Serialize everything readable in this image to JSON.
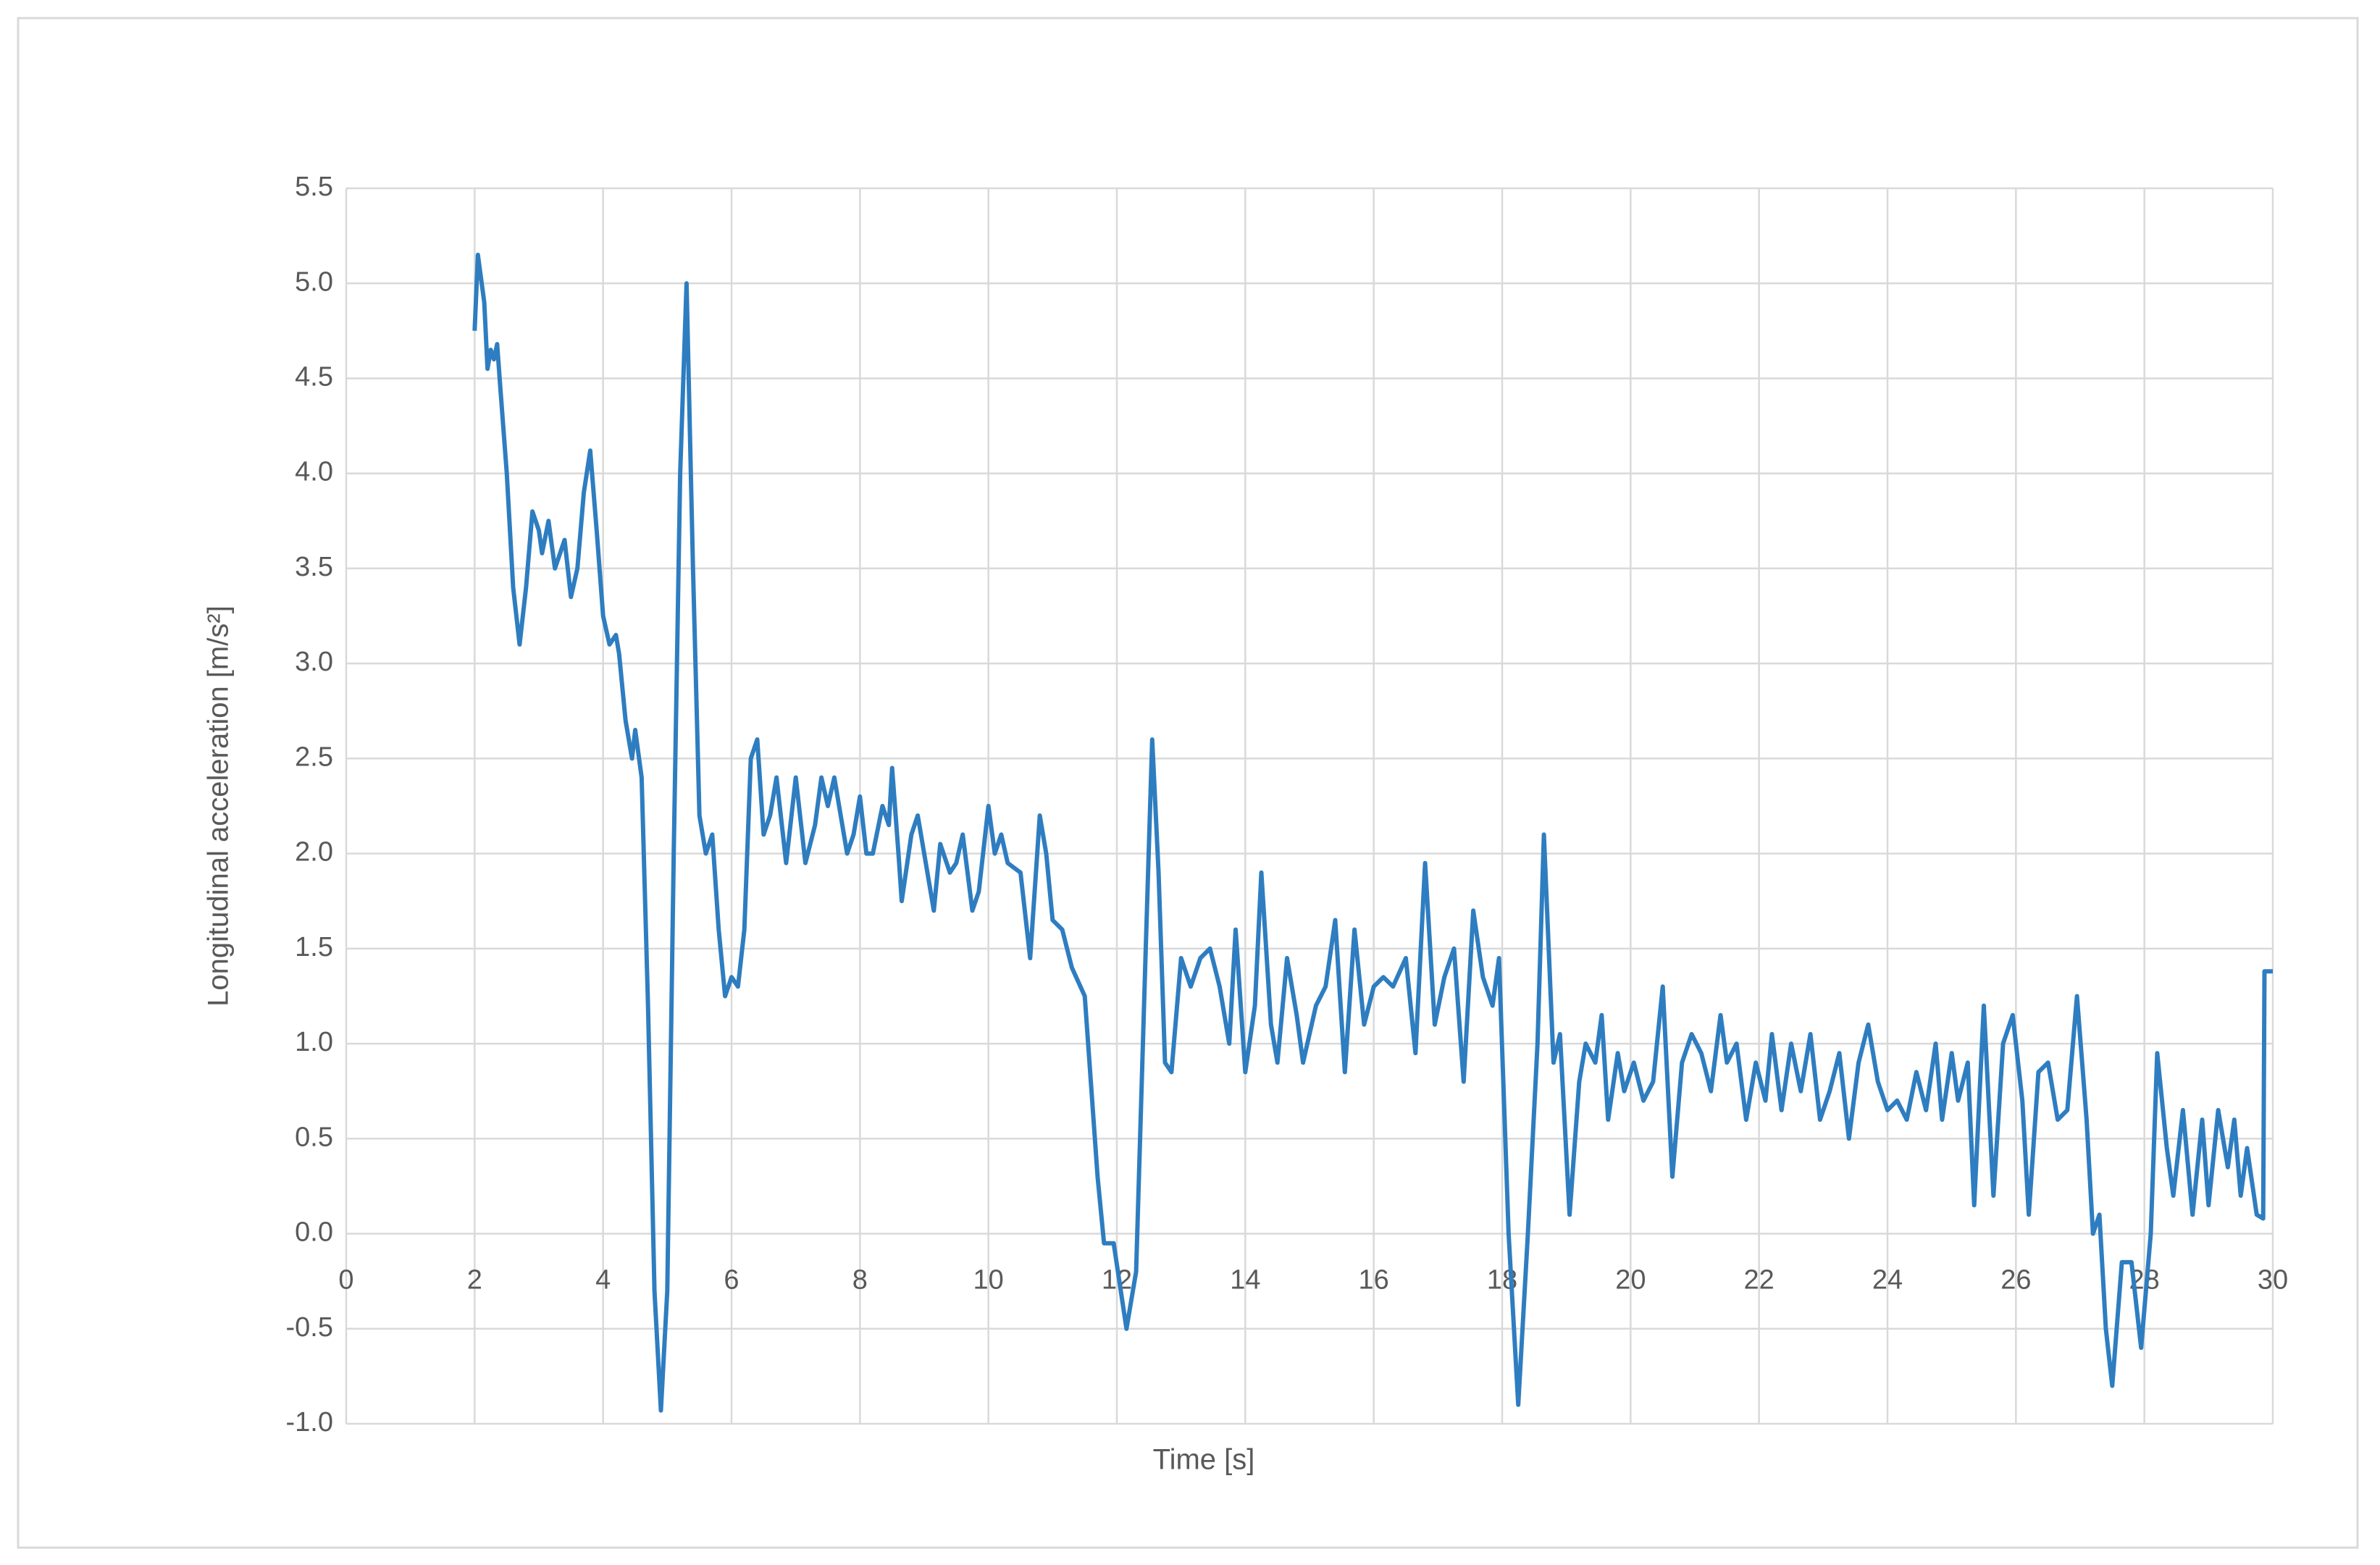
{
  "chart_data": {
    "type": "line",
    "xlabel": "Time [s]",
    "ylabel": "Longitudinal acceleration [m/s²]",
    "color": "#2e7dc0",
    "grid": true,
    "xlim": [
      0,
      30
    ],
    "xticks": [
      0,
      2,
      4,
      6,
      8,
      10,
      12,
      14,
      16,
      18,
      20,
      22,
      24,
      26,
      28,
      30
    ],
    "ylim": [
      -1,
      5.5
    ],
    "yticks": [
      {
        "value": -1,
        "label": "-1.0"
      },
      -0.5,
      {
        "value": 0,
        "label": "0.0"
      },
      0.5,
      {
        "value": 1,
        "label": "1.0"
      },
      1.5,
      {
        "value": 2,
        "label": "2.0"
      },
      2.5,
      {
        "value": 3,
        "label": "3.0"
      },
      3.5,
      {
        "value": 4,
        "label": "4.0"
      },
      4.5,
      {
        "value": 5,
        "label": "5.0"
      },
      5.5
    ],
    "x": [
      2.0,
      2.05,
      2.15,
      2.2,
      2.25,
      2.3,
      2.35,
      2.4,
      2.5,
      2.6,
      2.7,
      2.8,
      2.9,
      3.0,
      3.05,
      3.15,
      3.25,
      3.4,
      3.5,
      3.6,
      3.7,
      3.8,
      3.9,
      4.0,
      4.1,
      4.2,
      4.25,
      4.35,
      4.45,
      4.5,
      4.6,
      4.7,
      4.8,
      4.9,
      5.0,
      5.1,
      5.2,
      5.3,
      5.4,
      5.5,
      5.6,
      5.7,
      5.8,
      5.9,
      6.0,
      6.1,
      6.2,
      6.3,
      6.4,
      6.5,
      6.6,
      6.7,
      6.85,
      7.0,
      7.15,
      7.3,
      7.4,
      7.5,
      7.6,
      7.8,
      7.9,
      8.0,
      8.1,
      8.2,
      8.35,
      8.45,
      8.5,
      8.6,
      8.65,
      8.8,
      8.9,
      9.0,
      9.15,
      9.25,
      9.4,
      9.5,
      9.6,
      9.75,
      9.85,
      10.0,
      10.1,
      10.2,
      10.3,
      10.5,
      10.65,
      10.8,
      10.9,
      11.0,
      11.15,
      11.3,
      11.5,
      11.7,
      11.8,
      11.95,
      12.15,
      12.3,
      12.45,
      12.55,
      12.65,
      12.75,
      12.85,
      13.0,
      13.15,
      13.3,
      13.45,
      13.6,
      13.75,
      13.85,
      14.0,
      14.15,
      14.25,
      14.4,
      14.5,
      14.65,
      14.8,
      14.9,
      15.1,
      15.25,
      15.4,
      15.55,
      15.7,
      15.85,
      16.0,
      16.15,
      16.3,
      16.5,
      16.65,
      16.8,
      16.95,
      17.1,
      17.25,
      17.4,
      17.55,
      17.7,
      17.85,
      17.95,
      18.1,
      18.25,
      18.4,
      18.55,
      18.65,
      18.8,
      18.9,
      19.05,
      19.2,
      19.3,
      19.45,
      19.55,
      19.65,
      19.8,
      19.9,
      20.05,
      20.2,
      20.35,
      20.5,
      20.65,
      20.8,
      20.95,
      21.1,
      21.25,
      21.4,
      21.5,
      21.65,
      21.8,
      21.95,
      22.1,
      22.2,
      22.35,
      22.5,
      22.65,
      22.8,
      22.95,
      23.1,
      23.25,
      23.4,
      23.55,
      23.7,
      23.85,
      24.0,
      24.15,
      24.3,
      24.45,
      24.6,
      24.75,
      24.85,
      25.0,
      25.1,
      25.25,
      25.35,
      25.5,
      25.65,
      25.8,
      25.95,
      26.1,
      26.2,
      26.35,
      26.5,
      26.65,
      26.8,
      26.95,
      27.1,
      27.2,
      27.3,
      27.4,
      27.5,
      27.65,
      27.8,
      27.95,
      28.1,
      28.2,
      28.35,
      28.45,
      28.6,
      28.75,
      28.9,
      29.0,
      29.15,
      29.3,
      29.4,
      29.5,
      29.6,
      29.75,
      29.85,
      29.87,
      30.0
    ],
    "values": [
      4.75,
      5.15,
      4.9,
      4.55,
      4.65,
      4.6,
      4.68,
      4.45,
      4.0,
      3.4,
      3.1,
      3.4,
      3.8,
      3.7,
      3.58,
      3.75,
      3.5,
      3.65,
      3.35,
      3.5,
      3.9,
      4.12,
      3.7,
      3.25,
      3.1,
      3.15,
      3.05,
      2.7,
      2.5,
      2.65,
      2.4,
      1.2,
      -0.3,
      -0.93,
      -0.3,
      2.0,
      4.0,
      5.0,
      3.5,
      2.2,
      2.0,
      2.1,
      1.6,
      1.25,
      1.35,
      1.3,
      1.6,
      2.5,
      2.6,
      2.1,
      2.2,
      2.4,
      1.95,
      2.4,
      1.95,
      2.15,
      2.4,
      2.25,
      2.4,
      2.0,
      2.1,
      2.3,
      2.0,
      2.0,
      2.25,
      2.15,
      2.45,
      2.0,
      1.75,
      2.1,
      2.2,
      2.0,
      1.7,
      2.05,
      1.9,
      1.95,
      2.1,
      1.7,
      1.8,
      2.25,
      2.0,
      2.1,
      1.95,
      1.9,
      1.45,
      2.2,
      2.0,
      1.65,
      1.6,
      1.4,
      1.25,
      0.3,
      -0.05,
      -0.05,
      -0.5,
      -0.2,
      1.5,
      2.6,
      1.9,
      0.9,
      0.85,
      1.45,
      1.3,
      1.45,
      1.5,
      1.3,
      1.0,
      1.6,
      0.85,
      1.2,
      1.9,
      1.1,
      0.9,
      1.45,
      1.15,
      0.9,
      1.2,
      1.3,
      1.65,
      0.85,
      1.6,
      1.1,
      1.3,
      1.35,
      1.3,
      1.45,
      0.95,
      1.95,
      1.1,
      1.35,
      1.5,
      0.8,
      1.7,
      1.35,
      1.2,
      1.45,
      0.0,
      -0.9,
      0.0,
      1.0,
      2.1,
      0.9,
      1.05,
      0.1,
      0.8,
      1.0,
      0.9,
      1.15,
      0.6,
      0.95,
      0.75,
      0.9,
      0.7,
      0.8,
      1.3,
      0.3,
      0.9,
      1.05,
      0.95,
      0.75,
      1.15,
      0.9,
      1.0,
      0.6,
      0.9,
      0.7,
      1.05,
      0.65,
      1.0,
      0.75,
      1.05,
      0.6,
      0.75,
      0.95,
      0.5,
      0.9,
      1.1,
      0.8,
      0.65,
      0.7,
      0.6,
      0.85,
      0.65,
      1.0,
      0.6,
      0.95,
      0.7,
      0.9,
      0.15,
      1.2,
      0.2,
      1.0,
      1.15,
      0.7,
      0.1,
      0.85,
      0.9,
      0.6,
      0.65,
      1.25,
      0.6,
      0.0,
      0.1,
      -0.5,
      -0.8,
      -0.15,
      -0.15,
      -0.6,
      0.0,
      0.95,
      0.45,
      0.2,
      0.65,
      0.1,
      0.6,
      0.15,
      0.65,
      0.35,
      0.6,
      0.2,
      0.45,
      0.1,
      0.08,
      1.38,
      1.38
    ]
  }
}
